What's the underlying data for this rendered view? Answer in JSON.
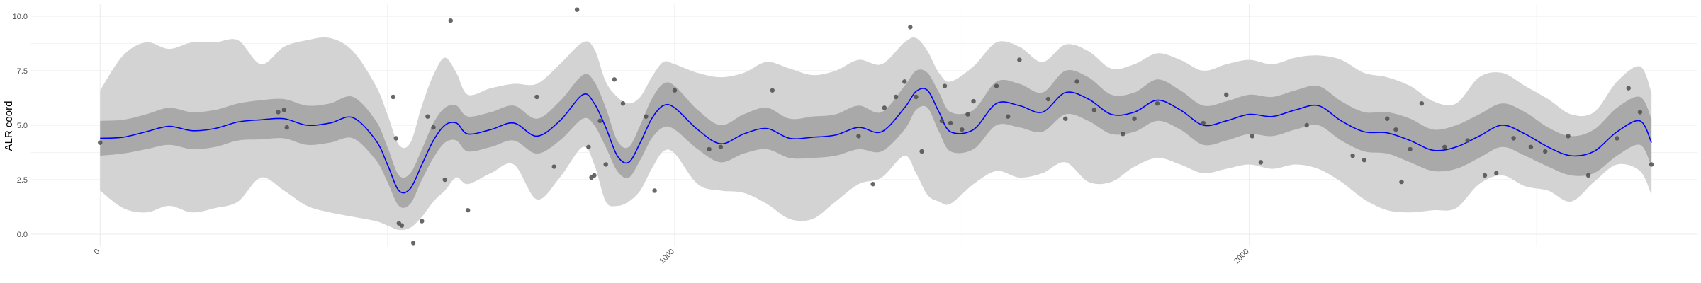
{
  "chart_data": {
    "type": "line",
    "title": "",
    "xlabel": "",
    "ylabel": "ALR coord",
    "xlim": [
      -120,
      2780
    ],
    "ylim": [
      -0.55,
      10.55
    ],
    "x_ticks": [
      0,
      1000,
      2000
    ],
    "x_tick_labels": [
      "0",
      "1000",
      "2000"
    ],
    "y_ticks": [
      0,
      2.5,
      5,
      7.5,
      10
    ],
    "y_tick_labels": [
      "0.0",
      "2.5",
      "5.0",
      "7.5",
      "10.0"
    ],
    "grid": true,
    "legend": "none",
    "colors": {
      "mean_line": "#0000ff",
      "outer_band": "#d3d3d3",
      "inner_band": "#a9a9a9",
      "points": "#4d4d4d",
      "grid": "#ebebeb"
    },
    "series": [
      {
        "kind": "line",
        "x": [
          0,
          40,
          80,
          120,
          160,
          200,
          240,
          280,
          320,
          360,
          400,
          440,
          480,
          500,
          520,
          540,
          560,
          580,
          600,
          620,
          640,
          680,
          720,
          760,
          800,
          840,
          860,
          880,
          900,
          920,
          940,
          960,
          980,
          1000,
          1040,
          1080,
          1120,
          1160,
          1200,
          1240,
          1280,
          1320,
          1360,
          1400,
          1420,
          1440,
          1460,
          1480,
          1520,
          1560,
          1600,
          1640,
          1680,
          1720,
          1760,
          1800,
          1840,
          1880,
          1920,
          1960,
          2000,
          2040,
          2080,
          2120,
          2160,
          2200,
          2240,
          2280,
          2320,
          2360,
          2400,
          2440,
          2480,
          2520,
          2560,
          2600,
          2640,
          2680,
          2700
        ],
        "values": [
          4.4,
          4.45,
          4.7,
          4.95,
          4.75,
          4.85,
          5.15,
          5.25,
          5.3,
          5.0,
          5.1,
          5.35,
          4.3,
          3.2,
          2.0,
          2.1,
          3.2,
          4.3,
          5.0,
          5.1,
          4.6,
          4.8,
          5.1,
          4.5,
          5.2,
          6.4,
          6.0,
          4.9,
          3.6,
          3.3,
          4.2,
          5.3,
          5.9,
          5.8,
          4.8,
          4.15,
          4.6,
          4.85,
          4.4,
          4.45,
          4.55,
          4.9,
          4.7,
          5.8,
          6.55,
          6.6,
          5.6,
          4.7,
          4.8,
          6.0,
          5.9,
          5.6,
          6.5,
          6.2,
          5.5,
          5.6,
          6.15,
          5.7,
          5.0,
          5.2,
          5.5,
          5.4,
          5.7,
          5.9,
          5.2,
          4.7,
          4.65,
          4.3,
          3.85,
          4.0,
          4.5,
          5.0,
          4.6,
          4.0,
          3.6,
          3.8,
          4.7,
          5.2,
          4.2
        ]
      },
      {
        "kind": "band-inner",
        "x": [
          0,
          40,
          80,
          120,
          160,
          200,
          240,
          280,
          320,
          360,
          400,
          440,
          480,
          500,
          520,
          540,
          560,
          580,
          600,
          620,
          640,
          680,
          720,
          760,
          800,
          840,
          860,
          880,
          900,
          920,
          940,
          960,
          980,
          1000,
          1040,
          1080,
          1120,
          1160,
          1200,
          1240,
          1280,
          1320,
          1360,
          1400,
          1420,
          1440,
          1460,
          1480,
          1520,
          1560,
          1600,
          1640,
          1680,
          1720,
          1760,
          1800,
          1840,
          1880,
          1920,
          1960,
          2000,
          2040,
          2080,
          2120,
          2160,
          2200,
          2240,
          2280,
          2320,
          2360,
          2400,
          2440,
          2480,
          2520,
          2560,
          2600,
          2640,
          2680,
          2700
        ],
        "lower": [
          3.6,
          3.7,
          3.9,
          4.1,
          3.9,
          4.0,
          4.3,
          4.35,
          4.4,
          4.1,
          4.2,
          4.4,
          3.4,
          2.4,
          1.3,
          1.4,
          2.5,
          3.5,
          4.2,
          4.3,
          3.8,
          4.0,
          4.3,
          3.7,
          4.3,
          5.3,
          5.0,
          4.0,
          2.9,
          2.6,
          3.4,
          4.4,
          4.9,
          4.8,
          3.9,
          3.3,
          3.7,
          3.9,
          3.5,
          3.5,
          3.6,
          3.9,
          3.8,
          4.8,
          5.7,
          5.8,
          4.7,
          3.8,
          3.9,
          5.0,
          4.9,
          4.7,
          5.5,
          5.2,
          4.6,
          4.7,
          5.2,
          4.8,
          4.1,
          4.3,
          4.6,
          4.5,
          4.8,
          5.0,
          4.3,
          3.8,
          3.7,
          3.3,
          2.9,
          3.0,
          3.5,
          4.0,
          3.6,
          3.1,
          2.7,
          2.8,
          3.6,
          4.1,
          3.1
        ],
        "upper": [
          5.2,
          5.25,
          5.5,
          5.8,
          5.6,
          5.7,
          6.0,
          6.15,
          6.2,
          5.9,
          6.0,
          6.3,
          5.2,
          4.0,
          2.7,
          2.8,
          3.9,
          5.1,
          5.8,
          5.9,
          5.4,
          5.6,
          5.9,
          5.3,
          6.1,
          7.3,
          7.0,
          5.8,
          4.3,
          4.0,
          5.0,
          6.2,
          6.9,
          6.8,
          5.7,
          5.0,
          5.5,
          5.8,
          5.3,
          5.4,
          5.5,
          5.9,
          5.6,
          6.8,
          7.5,
          7.4,
          6.5,
          5.6,
          5.7,
          7.0,
          6.9,
          6.5,
          7.5,
          7.2,
          6.4,
          6.5,
          7.1,
          6.6,
          5.9,
          6.1,
          6.4,
          6.3,
          6.6,
          6.8,
          6.1,
          5.6,
          5.6,
          5.3,
          4.8,
          5.0,
          5.5,
          6.0,
          5.6,
          4.9,
          4.5,
          4.8,
          5.8,
          6.3,
          5.3
        ]
      },
      {
        "kind": "band-outer",
        "x": [
          0,
          40,
          80,
          120,
          160,
          200,
          240,
          280,
          320,
          360,
          400,
          440,
          480,
          500,
          520,
          540,
          560,
          580,
          600,
          620,
          640,
          680,
          720,
          760,
          800,
          840,
          860,
          880,
          900,
          920,
          940,
          960,
          980,
          1000,
          1040,
          1080,
          1120,
          1160,
          1200,
          1240,
          1280,
          1320,
          1360,
          1400,
          1420,
          1440,
          1460,
          1480,
          1520,
          1560,
          1600,
          1640,
          1680,
          1720,
          1760,
          1800,
          1840,
          1880,
          1920,
          1960,
          2000,
          2040,
          2080,
          2120,
          2160,
          2200,
          2240,
          2280,
          2320,
          2360,
          2400,
          2440,
          2480,
          2520,
          2560,
          2600,
          2640,
          2680,
          2700
        ],
        "lower": [
          2.0,
          1.2,
          1.0,
          1.3,
          1.0,
          1.2,
          1.5,
          2.6,
          2.0,
          1.3,
          1.0,
          0.8,
          0.6,
          0.4,
          0.2,
          0.3,
          0.8,
          1.5,
          2.0,
          2.6,
          2.3,
          2.8,
          3.2,
          1.6,
          2.6,
          4.0,
          3.2,
          1.5,
          1.3,
          1.5,
          2.0,
          3.0,
          3.8,
          3.7,
          2.3,
          2.0,
          1.9,
          1.4,
          0.7,
          0.7,
          1.5,
          2.3,
          2.6,
          3.6,
          2.8,
          1.8,
          1.5,
          1.4,
          2.3,
          2.9,
          2.6,
          2.8,
          3.3,
          2.4,
          2.4,
          3.1,
          3.5,
          3.2,
          2.8,
          3.0,
          3.2,
          3.0,
          3.2,
          3.0,
          2.4,
          1.6,
          1.1,
          1.0,
          1.1,
          1.2,
          2.3,
          2.7,
          2.2,
          2.0,
          1.5,
          2.4,
          3.2,
          2.9,
          1.8
        ],
        "upper": [
          6.6,
          8.2,
          8.8,
          8.5,
          8.8,
          8.8,
          8.9,
          7.8,
          8.6,
          8.9,
          9.0,
          8.4,
          6.8,
          5.5,
          4.1,
          4.2,
          5.9,
          7.3,
          8.1,
          7.4,
          6.4,
          6.7,
          6.9,
          6.9,
          7.8,
          8.8,
          8.5,
          7.0,
          6.3,
          6.0,
          6.3,
          7.2,
          7.9,
          7.8,
          7.4,
          7.2,
          7.4,
          7.9,
          7.6,
          7.3,
          7.5,
          8.0,
          7.8,
          8.8,
          9.0,
          8.4,
          7.4,
          7.0,
          7.7,
          8.8,
          8.6,
          7.9,
          8.7,
          8.4,
          7.6,
          7.8,
          8.3,
          8.0,
          7.5,
          7.8,
          8.0,
          7.8,
          8.1,
          8.2,
          8.0,
          7.4,
          7.2,
          6.8,
          6.1,
          6.0,
          7.2,
          7.4,
          6.8,
          6.2,
          5.5,
          5.6,
          7.0,
          7.7,
          6.5
        ]
      },
      {
        "kind": "scatter",
        "x": [
          0,
          310,
          325,
          320,
          510,
          515,
          520,
          525,
          545,
          560,
          570,
          580,
          600,
          610,
          640,
          760,
          790,
          830,
          850,
          855,
          860,
          870,
          880,
          895,
          910,
          950,
          965,
          1000,
          1060,
          1080,
          1170,
          1320,
          1345,
          1365,
          1385,
          1400,
          1410,
          1420,
          1430,
          1465,
          1470,
          1480,
          1500,
          1510,
          1520,
          1560,
          1580,
          1600,
          1650,
          1680,
          1700,
          1730,
          1780,
          1800,
          1840,
          1920,
          1960,
          2005,
          2020,
          2100,
          2180,
          2200,
          2240,
          2255,
          2265,
          2280,
          2300,
          2340,
          2380,
          2410,
          2430,
          2460,
          2490,
          2515,
          2555,
          2590,
          2640,
          2660,
          2680,
          2700
        ],
        "y": [
          4.2,
          5.6,
          4.9,
          5.7,
          6.3,
          4.4,
          0.5,
          0.4,
          -0.4,
          0.6,
          5.4,
          4.9,
          2.5,
          9.8,
          1.1,
          6.3,
          3.1,
          10.3,
          4.0,
          2.6,
          2.7,
          5.2,
          3.2,
          7.1,
          6.0,
          5.4,
          2.0,
          6.6,
          3.9,
          4.0,
          6.6,
          4.5,
          2.3,
          5.8,
          6.3,
          7.0,
          9.5,
          6.3,
          3.8,
          5.2,
          6.8,
          5.1,
          4.8,
          5.5,
          6.1,
          6.8,
          5.4,
          8.0,
          6.2,
          5.3,
          7.0,
          5.7,
          4.6,
          5.3,
          6.0,
          5.1,
          6.4,
          4.5,
          3.3,
          5.0,
          3.6,
          3.4,
          5.3,
          4.8,
          2.4,
          3.9,
          6.0,
          4.0,
          4.3,
          2.7,
          2.8,
          4.4,
          4.0,
          3.8,
          4.5,
          2.7,
          4.4,
          6.7,
          5.6,
          3.2
        ]
      }
    ]
  }
}
